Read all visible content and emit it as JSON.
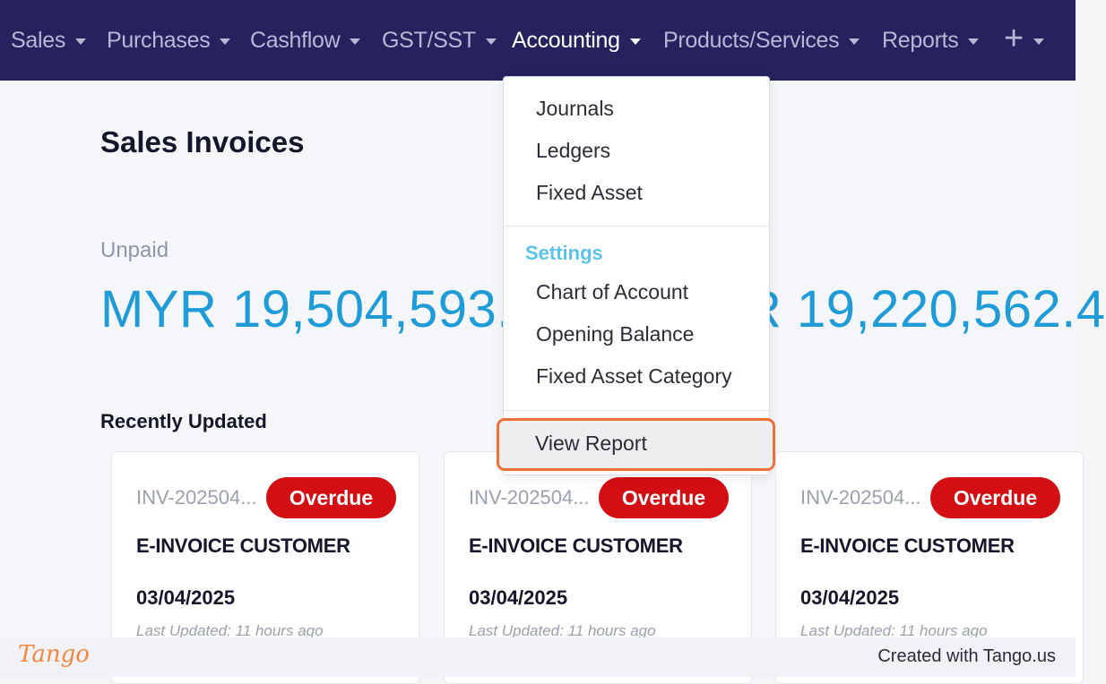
{
  "nav": {
    "items": [
      {
        "label": "Sales"
      },
      {
        "label": "Purchases"
      },
      {
        "label": "Cashflow"
      },
      {
        "label": "GST/SST"
      },
      {
        "label": "Accounting"
      },
      {
        "label": "Products/Services"
      },
      {
        "label": "Reports"
      },
      {
        "label": "+"
      }
    ],
    "active": "Accounting"
  },
  "main": {
    "title": "Sales Invoices",
    "stat_label": "Unpaid",
    "stats": [
      "MYR 19,504,593.",
      "R 19,220,562.4"
    ],
    "recent_title": "Recently Updated"
  },
  "cards": [
    {
      "invoice": "INV-202504...",
      "status": "Overdue",
      "customer": "E-INVOICE CUSTOMER",
      "date": "03/04/2025",
      "updated": "Last Updated: 11 hours ago"
    },
    {
      "invoice": "INV-202504...",
      "status": "Overdue",
      "customer": "E-INVOICE CUSTOMER",
      "date": "03/04/2025",
      "updated": "Last Updated: 11 hours ago"
    },
    {
      "invoice": "INV-202504...",
      "status": "Overdue",
      "customer": "E-INVOICE CUSTOMER",
      "date": "03/04/2025",
      "updated": "Last Updated: 11 hours ago"
    }
  ],
  "dropdown": {
    "items": [
      "Journals",
      "Ledgers",
      "Fixed Asset"
    ],
    "settings_header": "Settings",
    "settings_items": [
      "Chart of Account",
      "Opening Balance",
      "Fixed Asset Category"
    ],
    "highlighted_item": "View Report"
  },
  "footer": {
    "logo": "Tango",
    "credit": "Created with Tango.us"
  },
  "colors": {
    "nav_bg": "#25225e",
    "accent": "#1f9bd8",
    "badge": "#d40f14",
    "highlight_border": "#f0703a",
    "settings_header": "#5bc3e8"
  }
}
